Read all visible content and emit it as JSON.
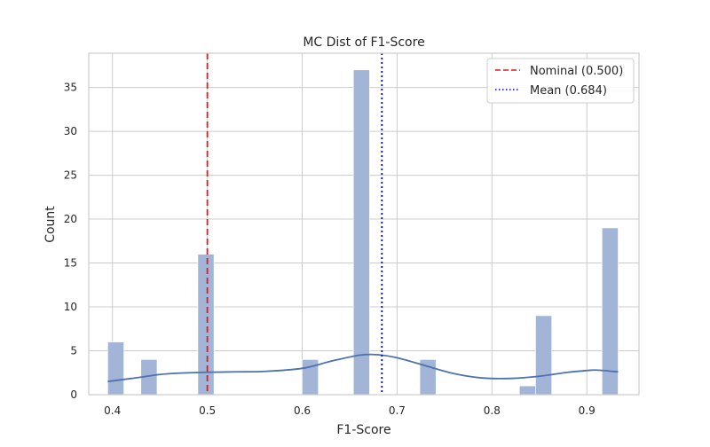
{
  "chart_data": {
    "type": "bar",
    "title": "MC Dist of F1-Score",
    "xlabel": "F1-Score",
    "ylabel": "Count",
    "xlim": [
      0.375,
      0.955
    ],
    "ylim": [
      0,
      38.9
    ],
    "xticks": [
      0.4,
      0.5,
      0.6,
      0.7,
      0.8,
      0.9
    ],
    "xtick_labels": [
      "0.4",
      "0.5",
      "0.6",
      "0.7",
      "0.8",
      "0.9"
    ],
    "yticks": [
      0,
      5,
      10,
      15,
      20,
      25,
      30,
      35
    ],
    "ytick_labels": [
      "0",
      "5",
      "10",
      "15",
      "20",
      "25",
      "30",
      "35"
    ],
    "grid": true,
    "legend_position": "top-right",
    "bar_color": "#a2b5d6",
    "kde_color": "#4c72b0",
    "bins": [
      {
        "x0": 0.395,
        "x1": 0.412,
        "count": 6
      },
      {
        "x0": 0.43,
        "x1": 0.447,
        "count": 4
      },
      {
        "x0": 0.49,
        "x1": 0.507,
        "count": 16
      },
      {
        "x0": 0.6,
        "x1": 0.617,
        "count": 4
      },
      {
        "x0": 0.654,
        "x1": 0.671,
        "count": 37
      },
      {
        "x0": 0.724,
        "x1": 0.741,
        "count": 4
      },
      {
        "x0": 0.829,
        "x1": 0.846,
        "count": 1
      },
      {
        "x0": 0.846,
        "x1": 0.863,
        "count": 9
      },
      {
        "x0": 0.916,
        "x1": 0.933,
        "count": 19
      }
    ],
    "kde": {
      "x": [
        0.395,
        0.42,
        0.45,
        0.47,
        0.5,
        0.53,
        0.56,
        0.6,
        0.63,
        0.66,
        0.68,
        0.7,
        0.73,
        0.76,
        0.79,
        0.82,
        0.85,
        0.88,
        0.9,
        0.91,
        0.933
      ],
      "y": [
        1.5,
        1.85,
        2.3,
        2.45,
        2.55,
        2.6,
        2.65,
        3.0,
        3.8,
        4.5,
        4.55,
        4.2,
        3.3,
        2.4,
        1.9,
        1.85,
        2.1,
        2.55,
        2.75,
        2.8,
        2.6
      ]
    },
    "vlines": [
      {
        "name": "Nominal (0.500)",
        "x": 0.5,
        "color": "#e31a1c",
        "style": "dashed"
      },
      {
        "name": "Mean (0.684)",
        "x": 0.684,
        "color": "#0000ee",
        "style": "dotted"
      }
    ]
  }
}
